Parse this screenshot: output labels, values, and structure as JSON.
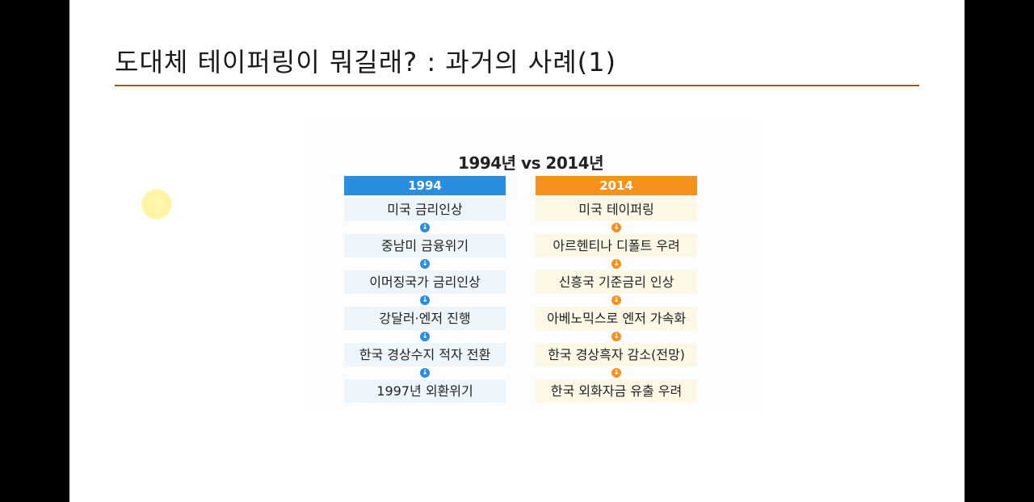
{
  "slide": {
    "title": "도대체 테이퍼링이 뭐길래? : 과거의 사례(1)"
  },
  "diagram": {
    "title": "1994년 vs 2014년",
    "arrow_glyph": "↓",
    "colors": {
      "left_accent": "#2a8ee0",
      "right_accent": "#f5921e",
      "title_rule": "#9c5a24"
    },
    "left": {
      "header": "1994",
      "steps": [
        "미국 금리인상",
        "중남미 금융위기",
        "이머징국가 금리인상",
        "강달러·엔저 진행",
        "한국 경상수지 적자 전환",
        "1997년 외환위기"
      ]
    },
    "right": {
      "header": "2014",
      "steps": [
        "미국 테이퍼링",
        "아르헨티나 디폴트 우려",
        "신흥국 기준금리 인상",
        "아베노믹스로 엔저 가속화",
        "한국 경상흑자 감소(전망)",
        "한국 외화자금 유출 우려"
      ]
    }
  }
}
